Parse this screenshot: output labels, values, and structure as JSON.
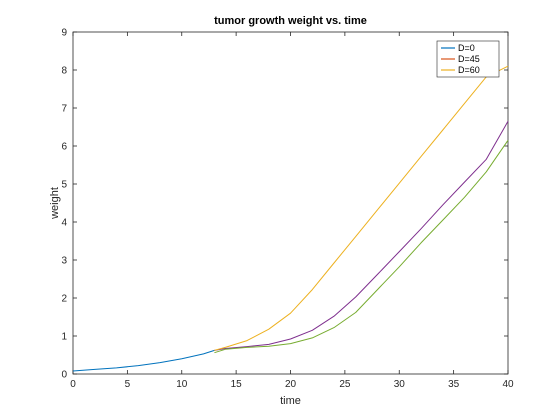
{
  "chart_data": {
    "type": "line",
    "title": "tumor growth weight vs. time",
    "xlabel": "time",
    "ylabel": "weight",
    "xlim": [
      0,
      40
    ],
    "ylim": [
      0,
      9
    ],
    "xticks": [
      0,
      5,
      10,
      15,
      20,
      25,
      30,
      35,
      40
    ],
    "yticks": [
      0,
      1,
      2,
      3,
      4,
      5,
      6,
      7,
      8,
      9
    ],
    "grid": false,
    "legend_position": "top-right",
    "series": [
      {
        "name": "D=0",
        "color": "#0072BD",
        "x": [
          0,
          2,
          4,
          6,
          8,
          10,
          12,
          13
        ],
        "y": [
          0.08,
          0.12,
          0.16,
          0.22,
          0.3,
          0.4,
          0.53,
          0.62
        ]
      },
      {
        "name": "D=45",
        "color": "#7E2F8E",
        "x": [
          13,
          14,
          16,
          18,
          20,
          22,
          24,
          26,
          28,
          30,
          32,
          34,
          36,
          38,
          40
        ],
        "y": [
          0.62,
          0.67,
          0.72,
          0.78,
          0.92,
          1.15,
          1.52,
          2.03,
          2.62,
          3.22,
          3.82,
          4.45,
          5.05,
          5.65,
          6.65
        ]
      },
      {
        "name": "D=60",
        "color": "#EDB120",
        "x": [
          13,
          14,
          16,
          18,
          20,
          22,
          24,
          26,
          28,
          30,
          32,
          34,
          36,
          38,
          40
        ],
        "y": [
          0.62,
          0.7,
          0.88,
          1.18,
          1.6,
          2.22,
          2.92,
          3.62,
          4.32,
          5.02,
          5.72,
          6.42,
          7.12,
          7.82,
          8.1
        ]
      },
      {
        "name": "",
        "color": "#77AC30",
        "x": [
          13,
          14,
          16,
          18,
          20,
          22,
          24,
          26,
          28,
          30,
          32,
          34,
          36,
          38,
          40
        ],
        "y": [
          0.56,
          0.65,
          0.7,
          0.73,
          0.8,
          0.95,
          1.22,
          1.62,
          2.22,
          2.82,
          3.45,
          4.05,
          4.65,
          5.32,
          6.15
        ]
      }
    ],
    "legend_entries": [
      {
        "label": "D=0",
        "color": "#0072BD"
      },
      {
        "label": "D=45",
        "color": "#D95319"
      },
      {
        "label": "D=60",
        "color": "#EDB120"
      }
    ]
  }
}
